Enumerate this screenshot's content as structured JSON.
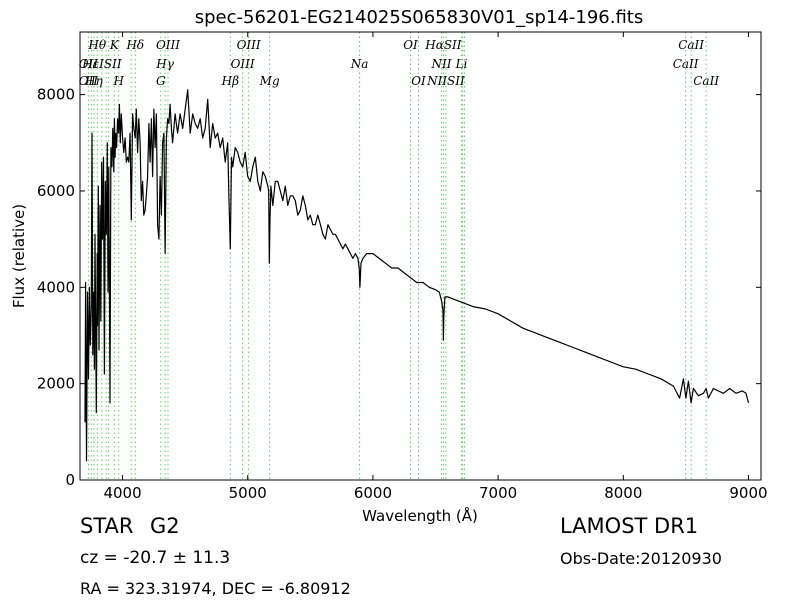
{
  "chart_data": {
    "type": "line",
    "title": "spec-56201-EG214025S065830V01_sp14-196.fits",
    "xlabel": "Wavelength (Å)",
    "ylabel": "Flux (relative)",
    "xlim": [
      3660,
      9100
    ],
    "ylim": [
      0,
      9300
    ],
    "xticks": [
      4000,
      5000,
      6000,
      7000,
      8000,
      9000
    ],
    "yticks": [
      0,
      2000,
      4000,
      6000,
      8000
    ],
    "grid": false,
    "line_color": "#000000",
    "marker_color": "#66cc66",
    "series": [
      {
        "x": [
          3700,
          3705,
          3712,
          3720,
          3728,
          3735,
          3742,
          3750,
          3756,
          3762,
          3770,
          3775,
          3780,
          3790,
          3797,
          3800,
          3806,
          3812,
          3820,
          3826,
          3833,
          3840,
          3848,
          3855,
          3862,
          3870,
          3878,
          3884,
          3890,
          3900,
          3907,
          3915,
          3922,
          3930,
          3935,
          3940,
          3945,
          3952,
          3960,
          3968,
          3975,
          3982,
          3990,
          4000,
          4010,
          4020,
          4030,
          4040,
          4050,
          4060,
          4070,
          4080,
          4090,
          4101,
          4110,
          4120,
          4130,
          4140,
          4150,
          4160,
          4170,
          4180,
          4190,
          4200,
          4210,
          4220,
          4230,
          4240,
          4250,
          4260,
          4270,
          4280,
          4290,
          4300,
          4310,
          4320,
          4330,
          4340,
          4350,
          4360,
          4370,
          4380,
          4390,
          4400,
          4420,
          4440,
          4460,
          4480,
          4500,
          4520,
          4540,
          4560,
          4580,
          4600,
          4620,
          4640,
          4660,
          4680,
          4700,
          4720,
          4740,
          4760,
          4780,
          4800,
          4820,
          4840,
          4850,
          4861,
          4870,
          4880,
          4900,
          4920,
          4940,
          4960,
          4980,
          5000,
          5020,
          5040,
          5060,
          5080,
          5100,
          5120,
          5140,
          5160,
          5167,
          5172,
          5178,
          5185,
          5200,
          5220,
          5240,
          5260,
          5280,
          5300,
          5320,
          5340,
          5360,
          5380,
          5400,
          5420,
          5440,
          5460,
          5480,
          5500,
          5520,
          5540,
          5560,
          5580,
          5600,
          5620,
          5640,
          5660,
          5680,
          5700,
          5720,
          5740,
          5760,
          5780,
          5800,
          5820,
          5840,
          5860,
          5880,
          5890,
          5896,
          5905,
          5920,
          5950,
          6000,
          6050,
          6100,
          6150,
          6200,
          6250,
          6300,
          6350,
          6400,
          6450,
          6500,
          6530,
          6550,
          6560,
          6563,
          6566,
          6575,
          6600,
          6650,
          6700,
          6750,
          6800,
          6900,
          7000,
          7100,
          7200,
          7300,
          7400,
          7500,
          7600,
          7700,
          7800,
          7900,
          8000,
          8100,
          8200,
          8300,
          8400,
          8450,
          8480,
          8500,
          8520,
          8542,
          8560,
          8600,
          8640,
          8662,
          8680,
          8720,
          8760,
          8800,
          8850,
          8900,
          8950,
          8980,
          9000
        ],
        "values": [
          1200,
          4100,
          400,
          3900,
          2100,
          4000,
          2800,
          3600,
          7200,
          2600,
          3900,
          2300,
          5100,
          1400,
          4700,
          3200,
          6100,
          2700,
          5700,
          3300,
          6600,
          5000,
          6700,
          2200,
          6200,
          5100,
          7000,
          3900,
          6500,
          1600,
          6900,
          6500,
          7300,
          6400,
          7500,
          6700,
          7200,
          6900,
          7500,
          7200,
          7800,
          7000,
          7600,
          7100,
          6800,
          7100,
          6600,
          6700,
          6600,
          7200,
          5400,
          7600,
          7300,
          7100,
          7700,
          6800,
          7500,
          7000,
          5800,
          6200,
          5500,
          5600,
          5900,
          6300,
          7400,
          6600,
          7500,
          6300,
          7700,
          6900,
          7600,
          5300,
          5000,
          6300,
          5500,
          7000,
          7200,
          4700,
          7100,
          7500,
          7400,
          7800,
          7300,
          7000,
          7600,
          7200,
          7600,
          7300,
          7700,
          8100,
          7200,
          7600,
          7400,
          7300,
          7500,
          7100,
          7300,
          7900,
          6900,
          7400,
          7100,
          7200,
          6900,
          7100,
          6600,
          7000,
          5800,
          4800,
          6700,
          6500,
          6900,
          6800,
          6600,
          6500,
          6800,
          6300,
          6200,
          6500,
          6700,
          6200,
          6000,
          6400,
          6300,
          6100,
          6000,
          4500,
          5400,
          6100,
          5700,
          6200,
          6200,
          6000,
          5800,
          6100,
          5700,
          5900,
          5900,
          5800,
          5500,
          5600,
          5900,
          5700,
          5400,
          5500,
          5300,
          5300,
          5500,
          5300,
          5100,
          5000,
          5300,
          5200,
          5100,
          5100,
          5000,
          4900,
          4800,
          4900,
          4800,
          4700,
          4600,
          4700,
          4600,
          4400,
          4000,
          4500,
          4600,
          4700,
          4700,
          4600,
          4500,
          4400,
          4400,
          4300,
          4200,
          4100,
          4100,
          4000,
          3950,
          3900,
          3700,
          3500,
          2900,
          3400,
          3800,
          3800,
          3750,
          3700,
          3650,
          3600,
          3550,
          3450,
          3300,
          3150,
          3050,
          2950,
          2850,
          2750,
          2650,
          2550,
          2450,
          2350,
          2300,
          2200,
          2100,
          1950,
          1700,
          2100,
          1700,
          2050,
          1600,
          1900,
          1750,
          1800,
          1900,
          1700,
          1900,
          1850,
          1800,
          1900,
          1800,
          1850,
          1800,
          1600
        ]
      }
    ],
    "line_markers": [
      {
        "wl": 3727,
        "label": "OII"
      },
      {
        "wl": 3750,
        "label": "H12"
      },
      {
        "wl": 3771,
        "label": "H11"
      },
      {
        "wl": 3798,
        "label": "H10"
      },
      {
        "wl": 3835,
        "label": "Hη"
      },
      {
        "wl": 3869,
        "label": "NeIII"
      },
      {
        "wl": 3889,
        "label": "Hζ"
      },
      {
        "wl": 3934,
        "label": "K"
      },
      {
        "wl": 3969,
        "label": "H"
      },
      {
        "wl": 4069,
        "label": "SII"
      },
      {
        "wl": 4102,
        "label": "Hδ"
      },
      {
        "wl": 4340,
        "label": "Hγ"
      },
      {
        "wl": 4305,
        "label": "G"
      },
      {
        "wl": 4363,
        "label": "OIII"
      },
      {
        "wl": 4861,
        "label": "Hβ"
      },
      {
        "wl": 4959,
        "label": "OIII"
      },
      {
        "wl": 5007,
        "label": "OIII"
      },
      {
        "wl": 5175,
        "label": "Mg"
      },
      {
        "wl": 5893,
        "label": "Na"
      },
      {
        "wl": 6300,
        "label": "OI"
      },
      {
        "wl": 6364,
        "label": "OI"
      },
      {
        "wl": 6548,
        "label": "NII"
      },
      {
        "wl": 6563,
        "label": "Hα"
      },
      {
        "wl": 6583,
        "label": "NII"
      },
      {
        "wl": 6708,
        "label": "Li"
      },
      {
        "wl": 6717,
        "label": "SII"
      },
      {
        "wl": 6731,
        "label": "SII"
      },
      {
        "wl": 8498,
        "label": "CaII"
      },
      {
        "wl": 8542,
        "label": "CaII"
      },
      {
        "wl": 8662,
        "label": "CaII"
      }
    ],
    "marker_labels": [
      {
        "text": "Hθ",
        "wl": 3798,
        "row": 0
      },
      {
        "text": "K",
        "wl": 3934,
        "row": 0
      },
      {
        "text": "Hδ",
        "wl": 4102,
        "row": 0
      },
      {
        "text": "OIII",
        "wl": 4363,
        "row": 0
      },
      {
        "text": "OIII",
        "wl": 5007,
        "row": 0
      },
      {
        "text": "OI",
        "wl": 6300,
        "row": 0
      },
      {
        "text": "HαSII",
        "wl": 6563,
        "row": 0
      },
      {
        "text": "CaII",
        "wl": 8542,
        "row": 0
      },
      {
        "text": "OII",
        "wl": 3727,
        "row": 1
      },
      {
        "text": "HεISII",
        "wl": 3835,
        "row": 1
      },
      {
        "text": "Hγ",
        "wl": 4340,
        "row": 1
      },
      {
        "text": "OIII",
        "wl": 4959,
        "row": 1
      },
      {
        "text": "Na",
        "wl": 5893,
        "row": 1
      },
      {
        "text": "NII",
        "wl": 6548,
        "row": 1
      },
      {
        "text": "Li",
        "wl": 6708,
        "row": 1
      },
      {
        "text": "CaII",
        "wl": 8498,
        "row": 1
      },
      {
        "text": "OII",
        "wl": 3727,
        "row": 2
      },
      {
        "text": "Hη",
        "wl": 3771,
        "row": 2
      },
      {
        "text": "H",
        "wl": 3969,
        "row": 2
      },
      {
        "text": "G",
        "wl": 4305,
        "row": 2
      },
      {
        "text": "Hβ",
        "wl": 4861,
        "row": 2
      },
      {
        "text": "Mg",
        "wl": 5175,
        "row": 2
      },
      {
        "text": "OI",
        "wl": 6364,
        "row": 2
      },
      {
        "text": "NIISII",
        "wl": 6583,
        "row": 2
      },
      {
        "text": "CaII",
        "wl": 8662,
        "row": 2
      }
    ]
  },
  "info": {
    "object_class": "STAR",
    "subclass": "G2",
    "survey": "LAMOST DR1",
    "redshift": "cz = -20.7  ± 11.3",
    "obs_date": "Obs-Date:20120930",
    "coords": "RA = 323.31974, DEC = -6.80912"
  }
}
